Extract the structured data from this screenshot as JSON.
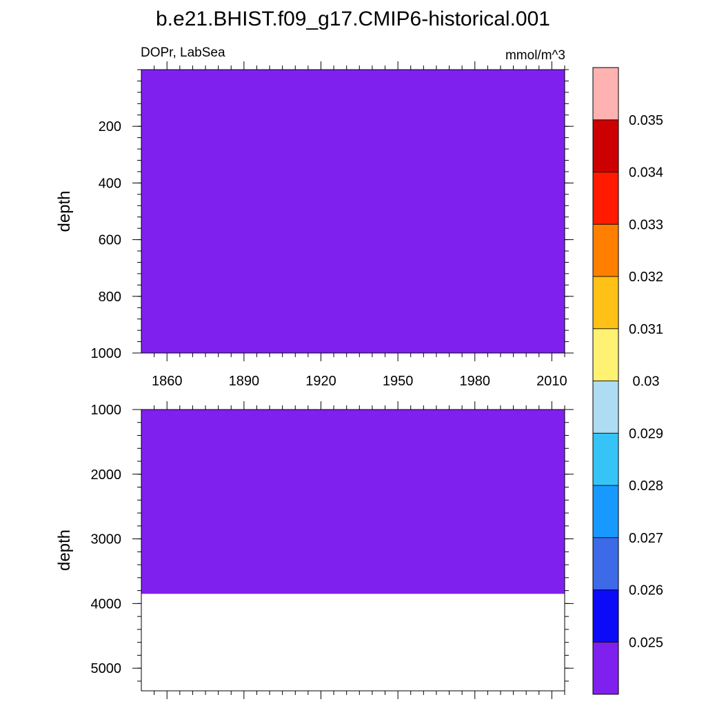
{
  "title": "b.e21.BHIST.f09_g17.CMIP6-historical.001",
  "chart_data": {
    "type": "heatmap",
    "variable_label": "DOPr, LabSea",
    "units": "mmol/m^3",
    "x_tick_labels": [
      "1860",
      "1890",
      "1920",
      "1950",
      "1980",
      "2010"
    ],
    "xlim": [
      1850,
      2015
    ],
    "panels": [
      {
        "ylabel": "depth",
        "ylim": [
          0,
          1000
        ],
        "y_ticks": [
          200,
          400,
          600,
          800,
          1000
        ],
        "y_tick_labels": [
          "200",
          "400",
          "600",
          "800",
          "1000"
        ],
        "fill_color": "#8020ee",
        "fill_to_depth": 1000,
        "show_x_tick_labels": true
      },
      {
        "ylabel": "depth",
        "ylim": [
          1000,
          5350
        ],
        "y_ticks": [
          1000,
          2000,
          3000,
          4000,
          5000
        ],
        "y_tick_labels": [
          "1000",
          "2000",
          "3000",
          "4000",
          "5000"
        ],
        "fill_color": "#8020ee",
        "fill_to_depth": 3850,
        "show_x_tick_labels": false
      }
    ],
    "colorbar": {
      "colors": [
        "#8020ee",
        "#0b0bf8",
        "#3d6ae6",
        "#1799ff",
        "#36c4f6",
        "#aedcf2",
        "#fff272",
        "#ffc116",
        "#ff7f00",
        "#ff1a00",
        "#cc0000",
        "#ffb2b2"
      ],
      "labels": [
        "0.025",
        "0.026",
        "0.027",
        "0.028",
        "0.029",
        "0.03",
        "0.031",
        "0.032",
        "0.033",
        "0.034",
        "0.035"
      ]
    }
  }
}
